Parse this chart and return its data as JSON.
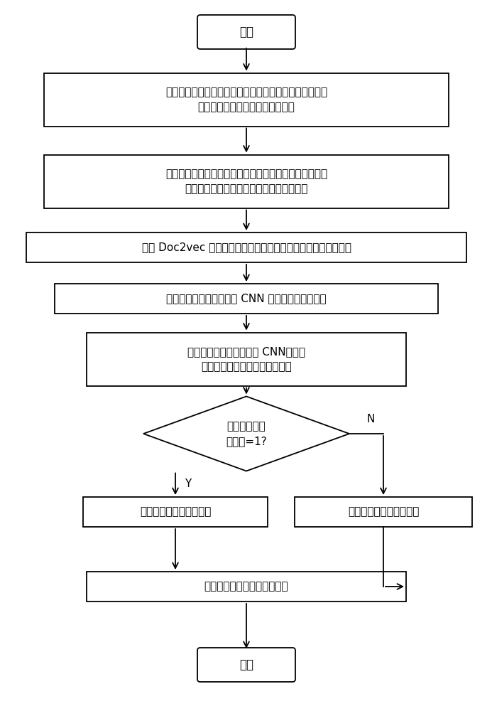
{
  "bg_color": "#ffffff",
  "line_color": "#000000",
  "box_color": "#ffffff",
  "font_color": "#000000",
  "font_size": 12,
  "small_font_size": 11,
  "title_font_size": 13,
  "start_text": "开始",
  "end_text": "结束",
  "box1_text": "搜集情感文本语料集，标记类别，将文本数据表示成一个\n句子并将语料分为训练集和测试集",
  "box2_text": "搜集情感词典，并采用基于自定义情感词典和统计相结合\n的方法对语料进行分词处理，然后去停用词",
  "box3_text": "采用 Doc2vec 对处理好的语料训练出词向量模型并得到文本向量",
  "box4_text": "将训练集的文本向量输入 CNN 训练出情感分类模型",
  "box5_text": "将测试集的文本向量输入 CNN，根据\n已经训练好的模型进行情感分类",
  "diamond_text": "实际输出文本\n的标签=1?",
  "box_y_text": "该文本表现的是积极情绪",
  "box_n_text": "该文本表现的是消极情绪",
  "box6_text": "统计并计算情感分类的准确率",
  "label_y": "Y",
  "label_n": "N"
}
